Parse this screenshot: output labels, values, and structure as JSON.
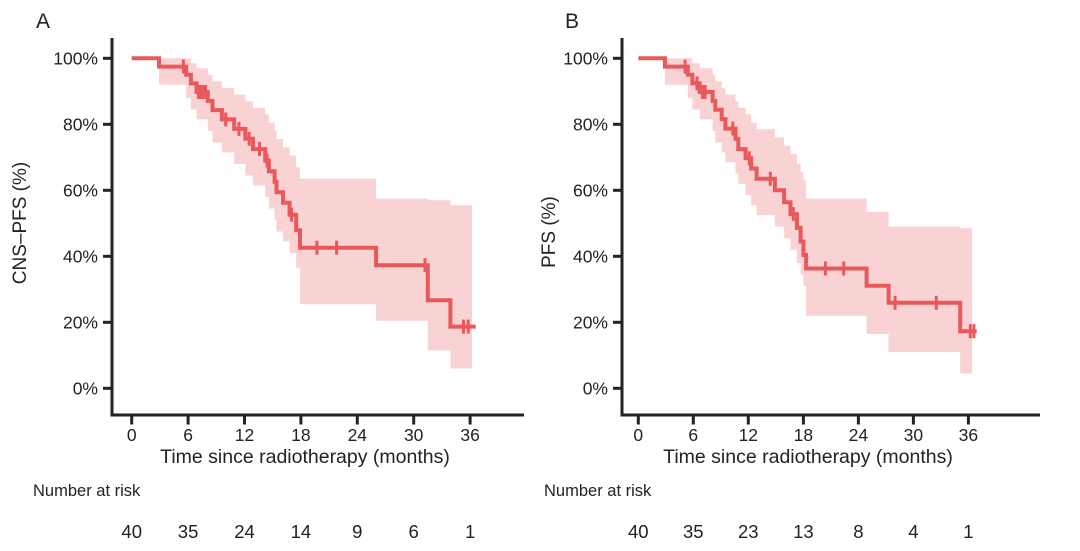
{
  "figure": {
    "background": "#ffffff",
    "axis_color": "#262122",
    "text_color": "#262122"
  },
  "chart_data": [
    {
      "type": "line",
      "subtype": "kaplan_meier_step_with_ci_band",
      "panel_label": "A",
      "xlabel": "Time since radiotherapy (months)",
      "ylabel": "CNS–PFS (%)",
      "x_ticks": [
        0,
        6,
        12,
        18,
        24,
        30,
        36
      ],
      "y_ticks": [
        "100%",
        "80%",
        "60%",
        "40%",
        "20%",
        "0%"
      ],
      "y_tick_values": [
        100,
        80,
        60,
        40,
        20,
        0
      ],
      "xlim": [
        0,
        38
      ],
      "ylim": [
        0,
        105
      ],
      "grid": false,
      "legend": "none",
      "line_color": "#e9595c",
      "band_color": "#f9d2d3",
      "curve_start": [
        0,
        100
      ],
      "steps": [
        [
          2.9,
          97.5
        ],
        [
          5.8,
          95.0
        ],
        [
          6.3,
          92.4
        ],
        [
          6.9,
          89.8
        ],
        [
          8.1,
          87.1
        ],
        [
          8.6,
          84.3
        ],
        [
          9.6,
          81.5
        ],
        [
          10.9,
          78.6
        ],
        [
          12.1,
          75.6
        ],
        [
          12.9,
          72.5
        ],
        [
          14.2,
          69.0
        ],
        [
          14.6,
          65.8
        ],
        [
          15.2,
          62.6
        ],
        [
          15.4,
          59.4
        ],
        [
          16.1,
          56.2
        ],
        [
          16.8,
          52.6
        ],
        [
          17.5,
          47.9
        ],
        [
          17.9,
          42.6
        ],
        [
          26.0,
          37.3
        ],
        [
          31.5,
          26.7
        ],
        [
          33.9,
          18.7
        ]
      ],
      "curve_end_month": 36.6,
      "censor_marks": [
        [
          5.5,
          97.5
        ],
        [
          7.1,
          89.8
        ],
        [
          7.35,
          89.8
        ],
        [
          7.6,
          89.8
        ],
        [
          7.85,
          89.8
        ],
        [
          10.0,
          81.5
        ],
        [
          11.4,
          78.6
        ],
        [
          12.5,
          75.6
        ],
        [
          13.6,
          72.5
        ],
        [
          14.4,
          69.0
        ],
        [
          17.0,
          52.6
        ],
        [
          19.7,
          42.6
        ],
        [
          21.8,
          42.6
        ],
        [
          31.2,
          37.3
        ],
        [
          35.3,
          18.7
        ],
        [
          35.8,
          18.7
        ]
      ],
      "band": [
        [
          2.9,
          92.0,
          100
        ],
        [
          5.8,
          88.0,
          100
        ],
        [
          6.3,
          84.5,
          98.5
        ],
        [
          6.9,
          81.5,
          97.0
        ],
        [
          8.1,
          78.0,
          95.0
        ],
        [
          8.6,
          74.5,
          93.0
        ],
        [
          9.6,
          71.5,
          91.0
        ],
        [
          10.9,
          68.0,
          89.0
        ],
        [
          12.1,
          64.5,
          87.0
        ],
        [
          12.9,
          61.5,
          85.0
        ],
        [
          14.2,
          58.0,
          83.0
        ],
        [
          14.6,
          54.5,
          80.5
        ],
        [
          15.2,
          51.0,
          78.0
        ],
        [
          15.4,
          47.5,
          75.5
        ],
        [
          16.1,
          44.5,
          73.0
        ],
        [
          16.8,
          41.0,
          70.5
        ],
        [
          17.5,
          36.5,
          67.0
        ],
        [
          17.9,
          25.5,
          63.5
        ],
        [
          26.0,
          20.5,
          57.5
        ],
        [
          31.5,
          11.5,
          57.0
        ],
        [
          33.9,
          6.0,
          55.5
        ]
      ],
      "band_end_month": 36.2,
      "risk_label": "Number at risk",
      "risk_numbers": [
        "40",
        "35",
        "24",
        "14",
        "9",
        "6",
        "1"
      ]
    },
    {
      "type": "line",
      "subtype": "kaplan_meier_step_with_ci_band",
      "panel_label": "B",
      "xlabel": "Time since radiotherapy (months)",
      "ylabel": "PFS (%)",
      "x_ticks": [
        0,
        6,
        12,
        18,
        24,
        30,
        36
      ],
      "y_ticks": [
        "100%",
        "80%",
        "60%",
        "40%",
        "20%",
        "0%"
      ],
      "y_tick_values": [
        100,
        80,
        60,
        40,
        20,
        0
      ],
      "xlim": [
        0,
        38
      ],
      "ylim": [
        0,
        105
      ],
      "grid": false,
      "legend": "none",
      "line_color": "#e9595c",
      "band_color": "#f9d2d3",
      "curve_start": [
        0,
        100
      ],
      "steps": [
        [
          2.9,
          97.5
        ],
        [
          5.4,
          95.0
        ],
        [
          5.9,
          92.4
        ],
        [
          6.7,
          89.8
        ],
        [
          8.1,
          87.1
        ],
        [
          8.4,
          84.4
        ],
        [
          9.1,
          81.6
        ],
        [
          9.5,
          78.7
        ],
        [
          10.6,
          75.6
        ],
        [
          10.9,
          72.5
        ],
        [
          11.7,
          69.7
        ],
        [
          12.3,
          66.6
        ],
        [
          12.9,
          63.5
        ],
        [
          14.9,
          60.0
        ],
        [
          15.9,
          56.4
        ],
        [
          16.6,
          52.8
        ],
        [
          17.3,
          48.6
        ],
        [
          17.7,
          44.5
        ],
        [
          18.0,
          40.4
        ],
        [
          18.3,
          36.3
        ],
        [
          24.9,
          31.1
        ],
        [
          27.3,
          25.9
        ],
        [
          35.1,
          17.3
        ]
      ],
      "curve_end_month": 36.9,
      "censor_marks": [
        [
          5.1,
          97.5
        ],
        [
          6.4,
          92.4
        ],
        [
          7.0,
          89.8
        ],
        [
          7.3,
          89.8
        ],
        [
          10.3,
          78.7
        ],
        [
          12.1,
          69.7
        ],
        [
          14.4,
          63.5
        ],
        [
          16.9,
          52.8
        ],
        [
          20.4,
          36.3
        ],
        [
          22.4,
          36.3
        ],
        [
          28.0,
          25.9
        ],
        [
          32.5,
          25.9
        ],
        [
          36.2,
          17.3
        ],
        [
          36.6,
          17.3
        ]
      ],
      "band": [
        [
          2.9,
          92.0,
          100
        ],
        [
          5.4,
          88.0,
          100
        ],
        [
          5.9,
          84.5,
          98.5
        ],
        [
          6.7,
          81.5,
          97.0
        ],
        [
          8.1,
          78.0,
          95.0
        ],
        [
          8.4,
          74.5,
          93.0
        ],
        [
          9.1,
          71.5,
          91.0
        ],
        [
          9.5,
          68.5,
          89.0
        ],
        [
          10.6,
          65.0,
          87.0
        ],
        [
          10.9,
          62.0,
          85.0
        ],
        [
          11.7,
          58.5,
          83.0
        ],
        [
          12.3,
          55.5,
          80.5
        ],
        [
          12.9,
          52.5,
          78.5
        ],
        [
          14.9,
          49.0,
          76.0
        ],
        [
          15.9,
          45.5,
          73.5
        ],
        [
          16.6,
          42.0,
          71.0
        ],
        [
          17.3,
          38.0,
          68.0
        ],
        [
          17.7,
          34.5,
          65.5
        ],
        [
          18.0,
          31.0,
          63.0
        ],
        [
          18.3,
          22.0,
          57.5
        ],
        [
          24.9,
          16.5,
          53.5
        ],
        [
          27.3,
          11.0,
          49.0
        ],
        [
          35.1,
          4.5,
          48.5
        ]
      ],
      "band_end_month": 36.4,
      "risk_label": "Number at risk",
      "risk_numbers": [
        "40",
        "35",
        "23",
        "13",
        "8",
        "4",
        "1"
      ]
    }
  ]
}
